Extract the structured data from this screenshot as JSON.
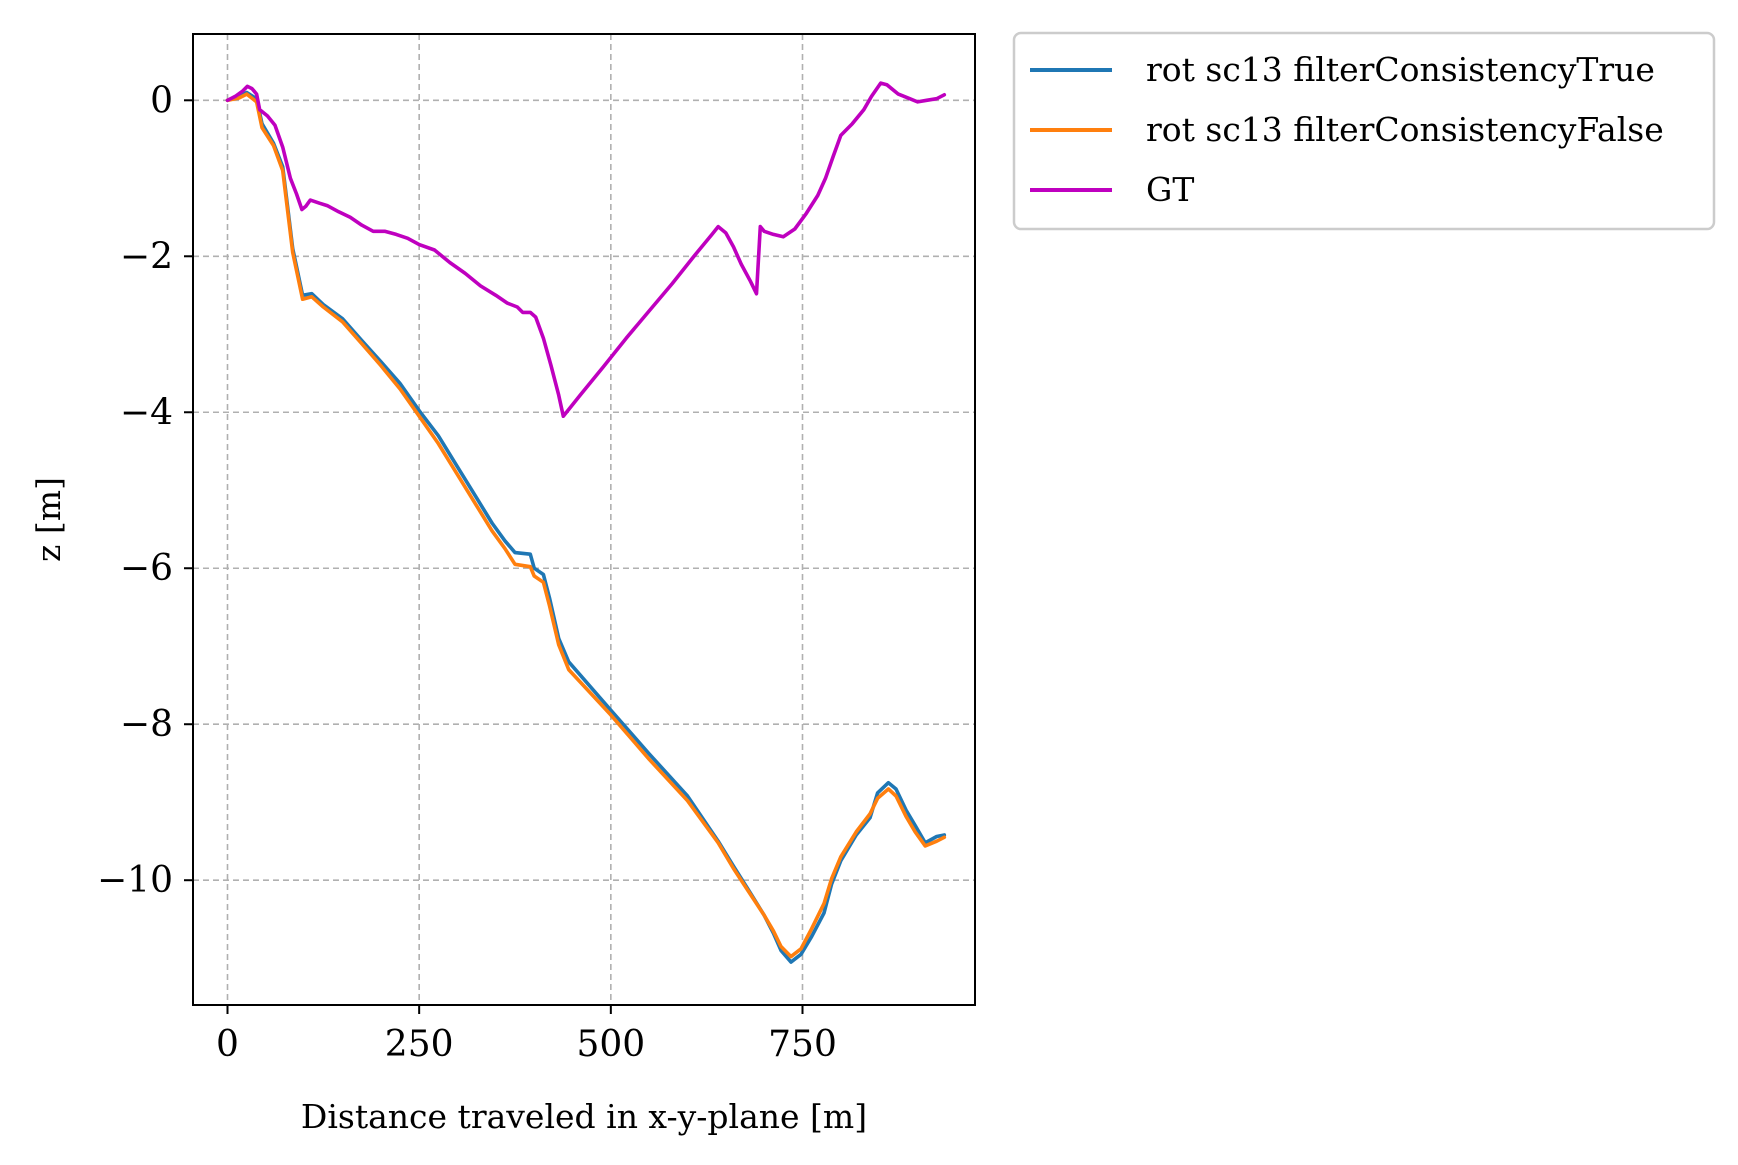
{
  "chart_data": {
    "type": "line",
    "xlabel": "Distance traveled in x-y-plane [m]",
    "ylabel": "z [m]",
    "xlim": [
      -45,
      975
    ],
    "ylim": [
      -11.6,
      0.85
    ],
    "xticks": [
      0,
      250,
      500,
      750
    ],
    "xtick_labels": [
      "0",
      "250",
      "500",
      "750"
    ],
    "yticks": [
      0,
      -2,
      -4,
      -6,
      -8,
      -10
    ],
    "ytick_labels": [
      "0",
      "−2",
      "−4",
      "−6",
      "−8",
      "−10"
    ],
    "grid": true,
    "legend_position": "outside-top-right",
    "series": [
      {
        "name": "rot sc13 filterConsistencyTrue",
        "color": "#1f77b4",
        "points": [
          [
            0,
            0
          ],
          [
            15,
            0.05
          ],
          [
            25,
            0.1
          ],
          [
            38,
            0.02
          ],
          [
            45,
            -0.3
          ],
          [
            60,
            -0.55
          ],
          [
            72,
            -0.85
          ],
          [
            85,
            -1.9
          ],
          [
            98,
            -2.5
          ],
          [
            110,
            -2.48
          ],
          [
            125,
            -2.62
          ],
          [
            150,
            -2.8
          ],
          [
            175,
            -3.08
          ],
          [
            200,
            -3.35
          ],
          [
            225,
            -3.63
          ],
          [
            250,
            -3.98
          ],
          [
            275,
            -4.3
          ],
          [
            300,
            -4.7
          ],
          [
            325,
            -5.1
          ],
          [
            345,
            -5.42
          ],
          [
            362,
            -5.65
          ],
          [
            375,
            -5.8
          ],
          [
            395,
            -5.82
          ],
          [
            400,
            -6.0
          ],
          [
            412,
            -6.08
          ],
          [
            420,
            -6.38
          ],
          [
            432,
            -6.9
          ],
          [
            445,
            -7.2
          ],
          [
            500,
            -7.82
          ],
          [
            550,
            -8.38
          ],
          [
            600,
            -8.92
          ],
          [
            640,
            -9.5
          ],
          [
            660,
            -9.82
          ],
          [
            680,
            -10.13
          ],
          [
            700,
            -10.45
          ],
          [
            712,
            -10.68
          ],
          [
            722,
            -10.9
          ],
          [
            735,
            -11.05
          ],
          [
            748,
            -10.95
          ],
          [
            762,
            -10.72
          ],
          [
            778,
            -10.42
          ],
          [
            788,
            -10.05
          ],
          [
            800,
            -9.75
          ],
          [
            820,
            -9.42
          ],
          [
            838,
            -9.2
          ],
          [
            848,
            -8.88
          ],
          [
            862,
            -8.75
          ],
          [
            872,
            -8.83
          ],
          [
            885,
            -9.1
          ],
          [
            897,
            -9.3
          ],
          [
            910,
            -9.52
          ],
          [
            925,
            -9.44
          ],
          [
            935,
            -9.42
          ]
        ]
      },
      {
        "name": "rot sc13 filterConsistencyFalse",
        "color": "#ff7f0e",
        "points": [
          [
            0,
            0
          ],
          [
            15,
            0.03
          ],
          [
            25,
            0.08
          ],
          [
            38,
            -0.02
          ],
          [
            45,
            -0.35
          ],
          [
            60,
            -0.58
          ],
          [
            72,
            -0.9
          ],
          [
            85,
            -1.95
          ],
          [
            98,
            -2.55
          ],
          [
            110,
            -2.52
          ],
          [
            125,
            -2.65
          ],
          [
            150,
            -2.84
          ],
          [
            175,
            -3.12
          ],
          [
            200,
            -3.4
          ],
          [
            225,
            -3.7
          ],
          [
            250,
            -4.05
          ],
          [
            275,
            -4.4
          ],
          [
            300,
            -4.8
          ],
          [
            325,
            -5.2
          ],
          [
            345,
            -5.52
          ],
          [
            362,
            -5.75
          ],
          [
            375,
            -5.95
          ],
          [
            395,
            -5.98
          ],
          [
            400,
            -6.1
          ],
          [
            412,
            -6.18
          ],
          [
            420,
            -6.48
          ],
          [
            432,
            -6.98
          ],
          [
            445,
            -7.3
          ],
          [
            500,
            -7.88
          ],
          [
            550,
            -8.45
          ],
          [
            600,
            -8.98
          ],
          [
            640,
            -9.52
          ],
          [
            660,
            -9.85
          ],
          [
            680,
            -10.15
          ],
          [
            700,
            -10.45
          ],
          [
            712,
            -10.65
          ],
          [
            722,
            -10.85
          ],
          [
            735,
            -10.98
          ],
          [
            748,
            -10.88
          ],
          [
            762,
            -10.62
          ],
          [
            778,
            -10.3
          ],
          [
            788,
            -9.98
          ],
          [
            800,
            -9.7
          ],
          [
            820,
            -9.38
          ],
          [
            838,
            -9.15
          ],
          [
            848,
            -8.95
          ],
          [
            862,
            -8.83
          ],
          [
            872,
            -8.92
          ],
          [
            885,
            -9.18
          ],
          [
            897,
            -9.38
          ],
          [
            910,
            -9.56
          ],
          [
            925,
            -9.5
          ],
          [
            935,
            -9.45
          ]
        ]
      },
      {
        "name": "GT",
        "color": "#bf00bf",
        "points": [
          [
            0,
            0
          ],
          [
            10,
            0.05
          ],
          [
            20,
            0.12
          ],
          [
            26,
            0.18
          ],
          [
            32,
            0.15
          ],
          [
            38,
            0.08
          ],
          [
            42,
            -0.12
          ],
          [
            52,
            -0.2
          ],
          [
            62,
            -0.32
          ],
          [
            72,
            -0.6
          ],
          [
            82,
            -1.0
          ],
          [
            90,
            -1.2
          ],
          [
            97,
            -1.4
          ],
          [
            102,
            -1.36
          ],
          [
            108,
            -1.28
          ],
          [
            120,
            -1.32
          ],
          [
            130,
            -1.35
          ],
          [
            145,
            -1.43
          ],
          [
            160,
            -1.5
          ],
          [
            175,
            -1.6
          ],
          [
            190,
            -1.68
          ],
          [
            205,
            -1.68
          ],
          [
            220,
            -1.72
          ],
          [
            235,
            -1.77
          ],
          [
            250,
            -1.85
          ],
          [
            270,
            -1.92
          ],
          [
            290,
            -2.08
          ],
          [
            310,
            -2.22
          ],
          [
            330,
            -2.38
          ],
          [
            350,
            -2.5
          ],
          [
            365,
            -2.6
          ],
          [
            378,
            -2.65
          ],
          [
            385,
            -2.72
          ],
          [
            395,
            -2.72
          ],
          [
            402,
            -2.78
          ],
          [
            412,
            -3.05
          ],
          [
            422,
            -3.4
          ],
          [
            432,
            -3.78
          ],
          [
            438,
            -4.05
          ],
          [
            460,
            -3.78
          ],
          [
            490,
            -3.42
          ],
          [
            520,
            -3.05
          ],
          [
            550,
            -2.7
          ],
          [
            580,
            -2.35
          ],
          [
            610,
            -1.98
          ],
          [
            632,
            -1.72
          ],
          [
            640,
            -1.62
          ],
          [
            650,
            -1.7
          ],
          [
            660,
            -1.88
          ],
          [
            670,
            -2.1
          ],
          [
            682,
            -2.32
          ],
          [
            690,
            -2.48
          ],
          [
            695,
            -1.62
          ],
          [
            700,
            -1.68
          ],
          [
            712,
            -1.72
          ],
          [
            725,
            -1.75
          ],
          [
            740,
            -1.65
          ],
          [
            755,
            -1.45
          ],
          [
            770,
            -1.22
          ],
          [
            780,
            -1.0
          ],
          [
            790,
            -0.72
          ],
          [
            800,
            -0.45
          ],
          [
            815,
            -0.3
          ],
          [
            830,
            -0.12
          ],
          [
            840,
            0.05
          ],
          [
            852,
            0.22
          ],
          [
            860,
            0.2
          ],
          [
            875,
            0.08
          ],
          [
            890,
            0.02
          ],
          [
            900,
            -0.02
          ],
          [
            912,
            0.0
          ],
          [
            925,
            0.02
          ],
          [
            935,
            0.07
          ]
        ]
      }
    ]
  }
}
